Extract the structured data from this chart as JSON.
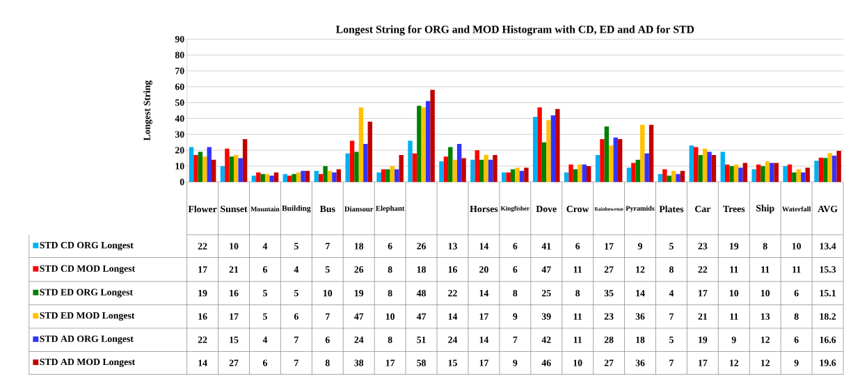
{
  "chart_data": {
    "type": "bar",
    "title": "Longest String for ORG  and MOD Histogram with CD, ED and AD for STD",
    "ylabel": "Longest String",
    "categories": [
      "Flower",
      "Sunset",
      "Mountain",
      "Building",
      "Bus",
      "Diansour",
      "Elephant",
      null,
      null,
      "Horses",
      "Kingfisher",
      "Dove",
      "Crow",
      "Rainbowrose",
      "Pyramids",
      "Plates",
      "Car",
      "Trees",
      "Ship",
      "Waterfall",
      "AVG"
    ],
    "series": [
      {
        "name": "STD CD ORG Longest",
        "color": "#00b0f0",
        "values": [
          22,
          10,
          4,
          5,
          7,
          18,
          6,
          26,
          13,
          14,
          6,
          41,
          6,
          17,
          9,
          5,
          23,
          19,
          8,
          10,
          13.4
        ]
      },
      {
        "name": "STD CD MOD Longest",
        "color": "#ff0000",
        "values": [
          17,
          21,
          6,
          4,
          5,
          26,
          8,
          18,
          16,
          20,
          6,
          47,
          11,
          27,
          12,
          8,
          22,
          11,
          11,
          11,
          15.3
        ]
      },
      {
        "name": "STD ED ORG Longest",
        "color": "#008000",
        "values": [
          19,
          16,
          5,
          5,
          10,
          19,
          8,
          48,
          22,
          14,
          8,
          25,
          8,
          35,
          14,
          4,
          17,
          10,
          10,
          6,
          15.1
        ]
      },
      {
        "name": "STD ED MOD Longest",
        "color": "#ffc000",
        "values": [
          16,
          17,
          5,
          6,
          7,
          47,
          10,
          47,
          14,
          17,
          9,
          39,
          11,
          23,
          36,
          7,
          21,
          11,
          13,
          8,
          18.2
        ]
      },
      {
        "name": "STD AD ORG Longest",
        "color": "#3333ff",
        "values": [
          22,
          15,
          4,
          7,
          6,
          24,
          8,
          51,
          24,
          14,
          7,
          42,
          11,
          28,
          18,
          5,
          19,
          9,
          12,
          6,
          16.6
        ]
      },
      {
        "name": "STD AD MOD Longest",
        "color": "#c00000",
        "values": [
          14,
          27,
          6,
          7,
          8,
          38,
          17,
          58,
          15,
          17,
          9,
          46,
          10,
          27,
          36,
          7,
          17,
          12,
          12,
          9,
          19.6
        ]
      }
    ],
    "ylim": [
      0,
      90
    ],
    "yticks": [
      0,
      10,
      20,
      30,
      40,
      50,
      60,
      70,
      80,
      90
    ],
    "grid": "y",
    "data_labels": true,
    "legend": "left"
  }
}
